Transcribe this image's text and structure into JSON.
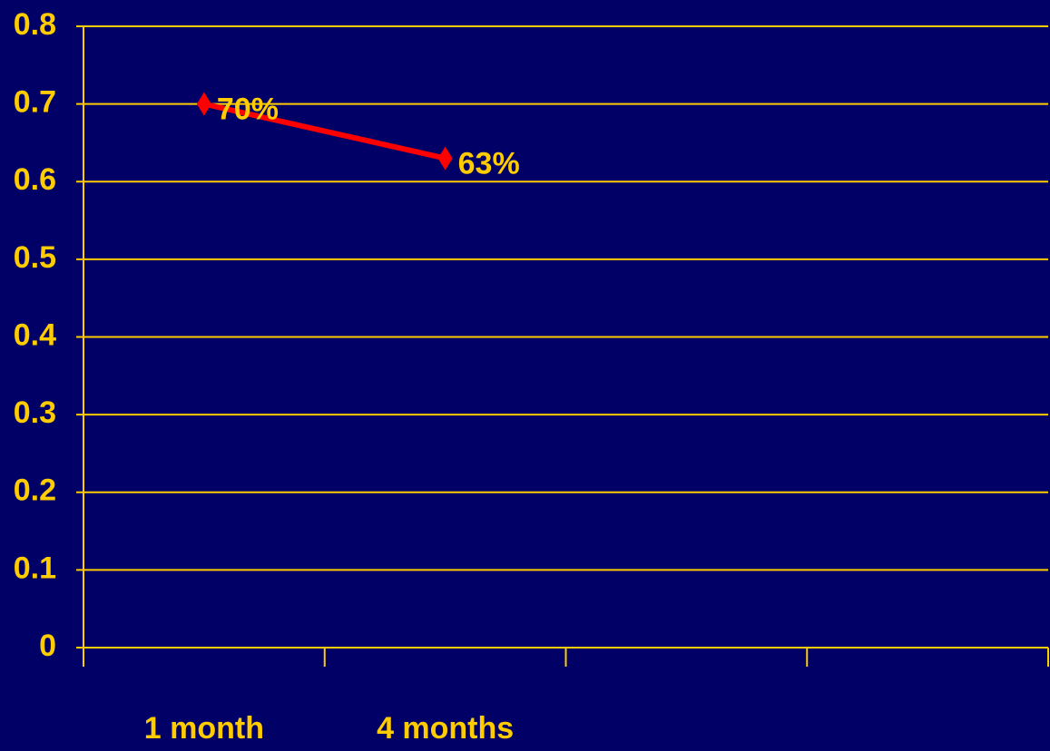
{
  "chart_data": {
    "type": "line",
    "categories": [
      "1 month",
      "4 months",
      null,
      null
    ],
    "series": [
      {
        "color": "#ff0000",
        "values": [
          0.7,
          0.63,
          null,
          null
        ],
        "value_labels": [
          "70%",
          "63%",
          null,
          null
        ]
      }
    ],
    "ylim": [
      0,
      0.8
    ],
    "yticks": [
      0,
      0.1,
      0.2,
      0.3,
      0.4,
      0.5,
      0.6,
      0.7,
      0.8
    ],
    "grid": true
  }
}
